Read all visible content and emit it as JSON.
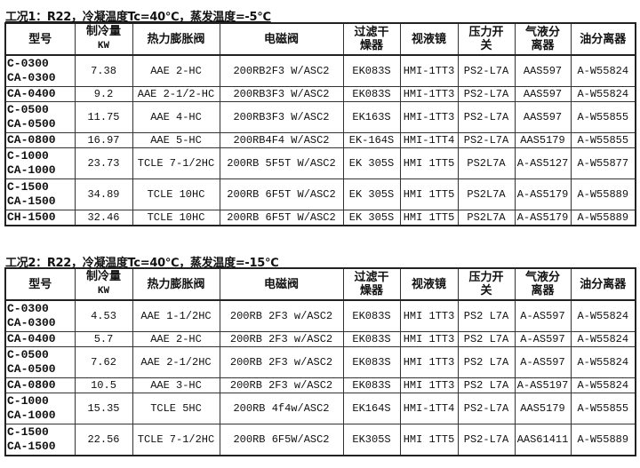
{
  "headers": [
    "型号",
    "制冷量|KW",
    "热力膨胀阀",
    "电磁阀",
    "过滤干|燥器",
    "视液镜",
    "压力开|关",
    "气液分|离器",
    "油分离器"
  ],
  "tables": [
    {
      "title": "工况1：R22，冷凝温度Tc=40℃，蒸发温度=-5℃",
      "rows": [
        {
          "model": [
            "C-0300",
            "CA-0300"
          ],
          "cells": [
            "7.38",
            "AAE 2-HC",
            "200RB2F3 W/ASC2",
            "EK083S",
            "HMI-1TT3",
            "PS2-L7A",
            "AAS597",
            "A-W55824"
          ]
        },
        {
          "model": [
            "CA-0400"
          ],
          "cells": [
            "9.2",
            "AAE 2-1/2-HC",
            "200RB3F3 W/ASC2",
            "EK083S",
            "HMI-1TT3",
            "PS2-L7A",
            "AAS597",
            "A-W55824"
          ]
        },
        {
          "model": [
            "C-0500",
            "CA-0500"
          ],
          "cells": [
            "11.75",
            "AAE 4-HC",
            "200RB3F3 W/ASC2",
            "EK163S",
            "HMI-1TT3",
            "PS2-L7A",
            "AAS597",
            "A-W55855"
          ]
        },
        {
          "model": [
            "CA-0800"
          ],
          "cells": [
            "16.97",
            "AAE 5-HC",
            "200RB4F4 W/ASC2",
            "EK-164S",
            "HMI-1TT4",
            "PS2-L7A",
            "AAS5179",
            "A-W55855"
          ]
        },
        {
          "model": [
            "C-1000",
            "CA-1000"
          ],
          "cells": [
            "23.73",
            "TCLE 7-1/2HC",
            "200RB 5F5T W/ASC2",
            "EK 305S",
            "HMI 1TT5",
            "PS2L7A",
            "A-AS5127",
            "A-W55877"
          ]
        },
        {
          "model": [
            "C-1500",
            "CA-1500"
          ],
          "cells": [
            "34.89",
            "TCLE 10HC",
            "200RB 6F5T W/ASC2",
            "EK 305S",
            "HMI 1TT5",
            "PS2L7A",
            "A-AS5179",
            "A-W55889"
          ]
        },
        {
          "model": [
            "CH-1500"
          ],
          "cells": [
            "32.46",
            "TCLE 10HC",
            "200RB 6F5T W/ASC2",
            "EK 305S",
            "HMI 1TT5",
            "PS2L7A",
            "A-AS5179",
            "A-W55889"
          ]
        }
      ]
    },
    {
      "title": "工况2：R22，冷凝温度Tc=40℃，蒸发温度=-15℃",
      "rows": [
        {
          "model": [
            "C-0300",
            "CA-0300"
          ],
          "cells": [
            "4.53",
            "AAE 1-1/2HC",
            "200RB 2F3 w/ASC2",
            "EK083S",
            "HMI 1TT3",
            "PS2 L7A",
            "A-AS597",
            "A-W55824"
          ]
        },
        {
          "model": [
            "CA-0400"
          ],
          "cells": [
            "5.7",
            "AAE 2-HC",
            "200RB 2F3 w/ASC2",
            "EK083S",
            "HMI 1TT3",
            "PS2 L7A",
            "A-AS597",
            "A-W55824"
          ]
        },
        {
          "model": [
            "C-0500",
            "CA-0500"
          ],
          "cells": [
            "7.62",
            "AAE 2-1/2HC",
            "200RB 2F3 w/ASC2",
            "EK083S",
            "HMI 1TT3",
            "PS2 L7A",
            "A-AS597",
            "A-W55824"
          ]
        },
        {
          "model": [
            "CA-0800"
          ],
          "cells": [
            "10.5",
            "AAE 3-HC",
            "200RB 2F3 w/ASC2",
            "EK083S",
            "HMI 1TT3",
            "PS2 L7A",
            "A-AS5197",
            "A-W55824"
          ]
        },
        {
          "model": [
            "C-1000",
            "CA-1000"
          ],
          "cells": [
            "15.35",
            "TCLE 5HC",
            "200RB 4f4w/ASC2",
            "EK164S",
            "HMI-1TT4",
            "PS2-L7A",
            "AAS5179",
            "A-W55855"
          ]
        },
        {
          "model": [
            "C-1500",
            "CA-1500"
          ],
          "cells": [
            "22.56",
            "TCLE 7-1/2HC",
            "200RB 6F5W/ASC2",
            "EK305S",
            "HMI 1TT5",
            "PS2-L7A",
            "AAS61411",
            "A-W55889"
          ]
        }
      ]
    }
  ]
}
